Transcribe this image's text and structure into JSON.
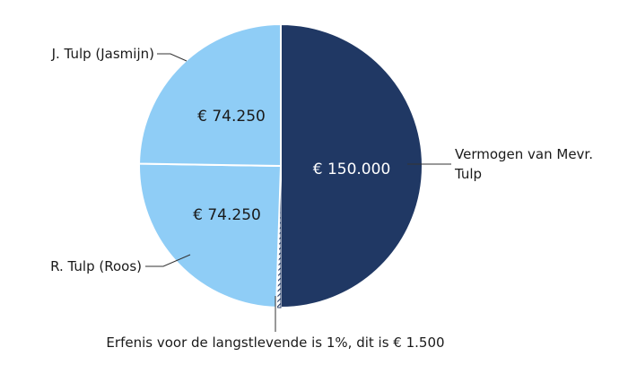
{
  "chart_data": {
    "type": "pie",
    "slices": [
      {
        "category": "Vermogen van Mevr. Tulp",
        "category_lines": [
          "Vermogen van Mevr.",
          "Tulp"
        ],
        "value": 150000,
        "label": "€ 150.000",
        "color": "#203864",
        "label_color": "#ffffff"
      },
      {
        "category": "Erfenis voor de langstlevende is 1%, dit is € 1.500",
        "category_lines": [
          "Erfenis voor de langstlevende is 1%, dit is € 1.500"
        ],
        "value": 1500,
        "label": "",
        "color": "#203864",
        "pattern": "diagonal-hatch",
        "label_color": "#ffffff"
      },
      {
        "category": "R. Tulp (Roos)",
        "category_lines": [
          "R. Tulp (Roos)"
        ],
        "value": 74250,
        "label": "€ 74.250",
        "color": "#8fcdf6",
        "label_color": "#1a1a1a"
      },
      {
        "category": "J. Tulp (Jasmijn)",
        "category_lines": [
          "J. Tulp (Jasmijn)"
        ],
        "value": 74250,
        "label": "€ 74.250",
        "color": "#8fcdf6",
        "label_color": "#1a1a1a"
      }
    ],
    "start_angle_deg": 0,
    "direction": "clockwise",
    "legend": "none"
  }
}
